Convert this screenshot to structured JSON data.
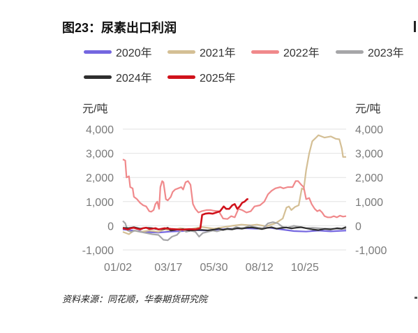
{
  "figure": {
    "title": "图23：尿素出口利润",
    "source": "资料来源：同花顺，华泰期货研究院"
  },
  "chart_data": {
    "type": "line",
    "unit_left": "元/吨",
    "unit_right": "元/吨",
    "ylim": [
      -1000,
      4000
    ],
    "yticks": [
      "4,000",
      "3,000",
      "2,000",
      "1,000",
      "0",
      "-1,000"
    ],
    "ytick_values": [
      4000,
      3000,
      2000,
      1000,
      0,
      -1000
    ],
    "xticks": [
      "01/02",
      "03/17",
      "05/30",
      "08/12",
      "10/25"
    ],
    "xtick_days": [
      2,
      76,
      150,
      224,
      298
    ],
    "xlim_days": [
      2,
      365
    ],
    "grid": "horizontal",
    "legend_placement": "top",
    "series": [
      {
        "name": "2020年",
        "color": "#7466e0",
        "points": [
          [
            2,
            -150
          ],
          [
            20,
            -200
          ],
          [
            40,
            -260
          ],
          [
            60,
            -280
          ],
          [
            80,
            -240
          ],
          [
            100,
            -220
          ],
          [
            120,
            -180
          ],
          [
            140,
            -200
          ],
          [
            160,
            -150
          ],
          [
            180,
            -120
          ],
          [
            200,
            -100
          ],
          [
            220,
            -120
          ],
          [
            240,
            -80
          ],
          [
            260,
            -150
          ],
          [
            280,
            -220
          ],
          [
            300,
            -240
          ],
          [
            320,
            -200
          ],
          [
            340,
            -230
          ],
          [
            365,
            -200
          ]
        ]
      },
      {
        "name": "2021年",
        "color": "#d4bf95",
        "points": [
          [
            2,
            -250
          ],
          [
            12,
            -350
          ],
          [
            20,
            -200
          ],
          [
            30,
            -250
          ],
          [
            45,
            -200
          ],
          [
            60,
            -250
          ],
          [
            70,
            -150
          ],
          [
            80,
            -200
          ],
          [
            95,
            -100
          ],
          [
            110,
            -150
          ],
          [
            130,
            -50
          ],
          [
            150,
            -120
          ],
          [
            165,
            -60
          ],
          [
            180,
            0
          ],
          [
            195,
            50
          ],
          [
            210,
            20
          ],
          [
            220,
            50
          ],
          [
            235,
            -20
          ],
          [
            250,
            100
          ],
          [
            262,
            300
          ],
          [
            268,
            750
          ],
          [
            272,
            800
          ],
          [
            276,
            650
          ],
          [
            282,
            780
          ],
          [
            288,
            850
          ],
          [
            293,
            1550
          ],
          [
            296,
            1500
          ],
          [
            300,
            2300
          ],
          [
            305,
            3000
          ],
          [
            310,
            3500
          ],
          [
            315,
            3620
          ],
          [
            320,
            3750
          ],
          [
            325,
            3700
          ],
          [
            330,
            3650
          ],
          [
            340,
            3700
          ],
          [
            348,
            3600
          ],
          [
            354,
            3580
          ],
          [
            358,
            3200
          ],
          [
            360,
            2850
          ],
          [
            365,
            2850
          ]
        ]
      },
      {
        "name": "2022年",
        "color": "#f0898b",
        "points": [
          [
            2,
            2750
          ],
          [
            6,
            2700
          ],
          [
            8,
            2000
          ],
          [
            12,
            2050
          ],
          [
            14,
            1600
          ],
          [
            18,
            1550
          ],
          [
            20,
            1200
          ],
          [
            25,
            1100
          ],
          [
            30,
            950
          ],
          [
            35,
            850
          ],
          [
            40,
            800
          ],
          [
            45,
            600
          ],
          [
            48,
            580
          ],
          [
            52,
            650
          ],
          [
            55,
            900
          ],
          [
            58,
            1000
          ],
          [
            61,
            700
          ],
          [
            63,
            1600
          ],
          [
            66,
            1850
          ],
          [
            68,
            1800
          ],
          [
            72,
            1100
          ],
          [
            75,
            1050
          ],
          [
            80,
            1200
          ],
          [
            83,
            1400
          ],
          [
            87,
            1500
          ],
          [
            92,
            1550
          ],
          [
            97,
            1600
          ],
          [
            100,
            1500
          ],
          [
            104,
            1800
          ],
          [
            108,
            1850
          ],
          [
            112,
            1700
          ],
          [
            116,
            900
          ],
          [
            120,
            700
          ],
          [
            125,
            550
          ],
          [
            130,
            600
          ],
          [
            138,
            650
          ],
          [
            145,
            650
          ],
          [
            150,
            620
          ],
          [
            158,
            600
          ],
          [
            165,
            300
          ],
          [
            172,
            280
          ],
          [
            178,
            400
          ],
          [
            184,
            350
          ],
          [
            190,
            700
          ],
          [
            196,
            650
          ],
          [
            203,
            550
          ],
          [
            210,
            600
          ],
          [
            216,
            800
          ],
          [
            225,
            850
          ],
          [
            232,
            1000
          ],
          [
            238,
            1300
          ],
          [
            244,
            1450
          ],
          [
            250,
            1550
          ],
          [
            258,
            1600
          ],
          [
            263,
            1550
          ],
          [
            270,
            1600
          ],
          [
            278,
            1600
          ],
          [
            283,
            1850
          ],
          [
            287,
            1850
          ],
          [
            292,
            1700
          ],
          [
            296,
            1600
          ],
          [
            300,
            1100
          ],
          [
            305,
            1150
          ],
          [
            309,
            900
          ],
          [
            314,
            700
          ],
          [
            318,
            600
          ],
          [
            322,
            650
          ],
          [
            326,
            550
          ],
          [
            330,
            400
          ],
          [
            335,
            350
          ],
          [
            340,
            350
          ],
          [
            345,
            400
          ],
          [
            350,
            350
          ],
          [
            355,
            420
          ],
          [
            360,
            380
          ],
          [
            365,
            400
          ]
        ]
      },
      {
        "name": "2023年",
        "color": "#a6a6a8",
        "points": [
          [
            2,
            200
          ],
          [
            6,
            100
          ],
          [
            10,
            -200
          ],
          [
            16,
            -250
          ],
          [
            22,
            -200
          ],
          [
            30,
            -250
          ],
          [
            40,
            -300
          ],
          [
            50,
            -350
          ],
          [
            60,
            -380
          ],
          [
            68,
            -580
          ],
          [
            75,
            -600
          ],
          [
            82,
            -450
          ],
          [
            90,
            -380
          ],
          [
            98,
            -150
          ],
          [
            105,
            -250
          ],
          [
            112,
            -200
          ],
          [
            120,
            -250
          ],
          [
            126,
            -450
          ],
          [
            132,
            -300
          ],
          [
            140,
            -250
          ],
          [
            148,
            -200
          ],
          [
            155,
            -230
          ],
          [
            162,
            -180
          ],
          [
            170,
            -150
          ],
          [
            178,
            -150
          ],
          [
            186,
            -50
          ],
          [
            194,
            -100
          ],
          [
            200,
            -80
          ],
          [
            208,
            0
          ],
          [
            215,
            -50
          ],
          [
            222,
            -80
          ],
          [
            230,
            -100
          ],
          [
            238,
            100
          ],
          [
            246,
            150
          ],
          [
            254,
            100
          ],
          [
            262,
            -50
          ],
          [
            270,
            -80
          ],
          [
            280,
            0
          ],
          [
            290,
            -50
          ],
          [
            300,
            -100
          ],
          [
            310,
            -80
          ],
          [
            320,
            -100
          ],
          [
            330,
            -120
          ],
          [
            345,
            -120
          ],
          [
            365,
            -130
          ]
        ]
      },
      {
        "name": "2024年",
        "color": "#2e2e2e",
        "points": [
          [
            2,
            -80
          ],
          [
            10,
            -100
          ],
          [
            20,
            -60
          ],
          [
            30,
            -120
          ],
          [
            40,
            -80
          ],
          [
            50,
            -100
          ],
          [
            60,
            -150
          ],
          [
            70,
            -130
          ],
          [
            75,
            -80
          ],
          [
            80,
            -200
          ],
          [
            90,
            -160
          ],
          [
            100,
            -140
          ],
          [
            110,
            -200
          ],
          [
            120,
            -180
          ],
          [
            130,
            -170
          ],
          [
            140,
            -190
          ],
          [
            150,
            -160
          ],
          [
            158,
            -120
          ],
          [
            165,
            -170
          ],
          [
            172,
            -120
          ],
          [
            180,
            -150
          ],
          [
            188,
            -100
          ],
          [
            196,
            -120
          ],
          [
            204,
            -80
          ],
          [
            212,
            -70
          ],
          [
            220,
            -100
          ],
          [
            228,
            -140
          ],
          [
            236,
            -90
          ],
          [
            244,
            -60
          ],
          [
            252,
            -120
          ],
          [
            260,
            -90
          ],
          [
            268,
            -70
          ],
          [
            276,
            -110
          ],
          [
            284,
            -80
          ],
          [
            292,
            -60
          ],
          [
            300,
            -100
          ],
          [
            310,
            -150
          ],
          [
            320,
            -180
          ],
          [
            330,
            -130
          ],
          [
            340,
            -150
          ],
          [
            350,
            -100
          ],
          [
            358,
            -120
          ],
          [
            365,
            -50
          ]
        ]
      },
      {
        "name": "2025年",
        "color": "#d0121b",
        "points": [
          [
            2,
            -100
          ],
          [
            10,
            -150
          ],
          [
            15,
            -100
          ],
          [
            20,
            -80
          ],
          [
            25,
            -120
          ],
          [
            30,
            -150
          ],
          [
            35,
            -100
          ],
          [
            40,
            -80
          ],
          [
            45,
            -130
          ],
          [
            50,
            -120
          ],
          [
            55,
            -100
          ],
          [
            60,
            -150
          ],
          [
            70,
            -100
          ],
          [
            80,
            -130
          ],
          [
            90,
            -150
          ],
          [
            100,
            -160
          ],
          [
            110,
            -140
          ],
          [
            120,
            -150
          ],
          [
            128,
            -100
          ],
          [
            131,
            450
          ],
          [
            136,
            500
          ],
          [
            142,
            520
          ],
          [
            148,
            500
          ],
          [
            154,
            550
          ],
          [
            160,
            600
          ],
          [
            163,
            700
          ],
          [
            166,
            800
          ],
          [
            170,
            700
          ],
          [
            175,
            700
          ],
          [
            180,
            850
          ],
          [
            184,
            900
          ],
          [
            188,
            700
          ],
          [
            192,
            800
          ],
          [
            196,
            950
          ],
          [
            200,
            1000
          ],
          [
            204,
            1100
          ],
          [
            206,
            1100
          ]
        ]
      }
    ]
  }
}
